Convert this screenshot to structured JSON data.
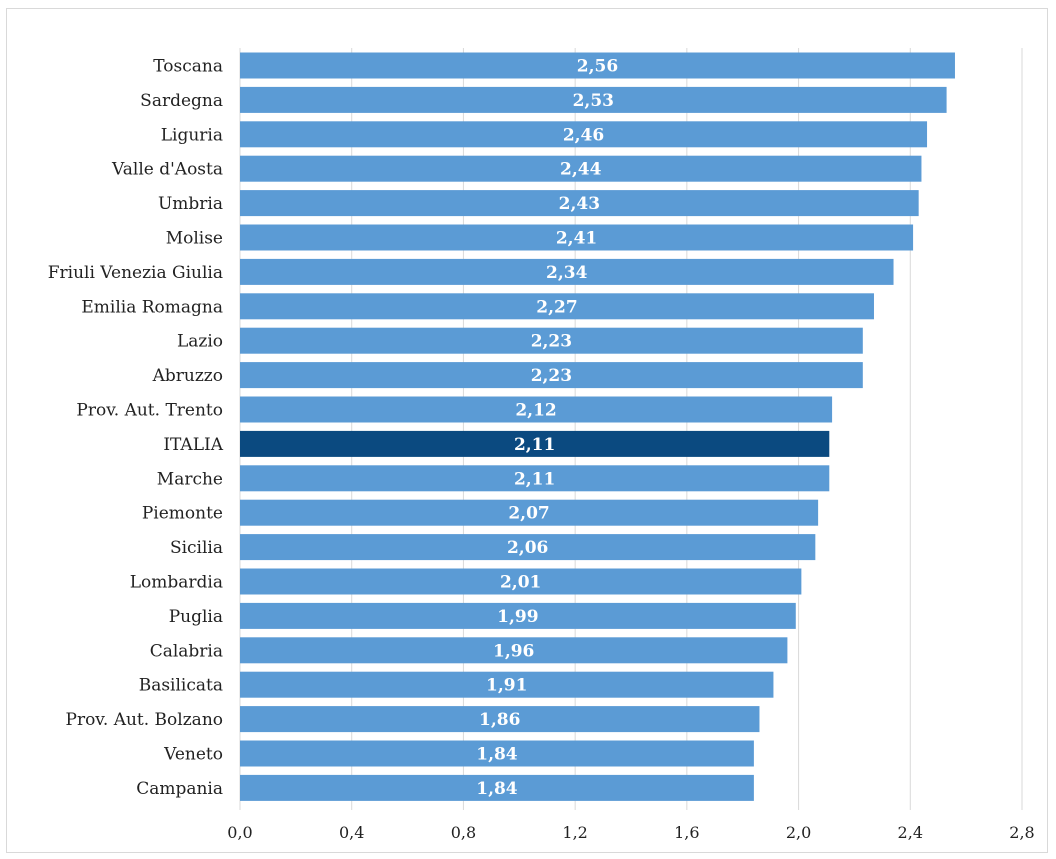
{
  "chart_data": {
    "type": "bar",
    "orientation": "horizontal",
    "categories": [
      "Toscana",
      "Sardegna",
      "Liguria",
      "Valle d'Aosta",
      "Umbria",
      "Molise",
      "Friuli Venezia Giulia",
      "Emilia Romagna",
      "Lazio",
      "Abruzzo",
      "Prov. Aut. Trento",
      "ITALIA",
      "Marche",
      "Piemonte",
      "Sicilia",
      "Lombardia",
      "Puglia",
      "Calabria",
      "Basilicata",
      "Prov. Aut. Bolzano",
      "Veneto",
      "Campania"
    ],
    "values": [
      2.56,
      2.53,
      2.46,
      2.44,
      2.43,
      2.41,
      2.34,
      2.27,
      2.23,
      2.23,
      2.12,
      2.11,
      2.11,
      2.07,
      2.06,
      2.01,
      1.99,
      1.96,
      1.91,
      1.86,
      1.84,
      1.84
    ],
    "value_labels": [
      "2,56",
      "2,53",
      "2,46",
      "2,44",
      "2,43",
      "2,41",
      "2,34",
      "2,27",
      "2,23",
      "2,23",
      "2,12",
      "2,11",
      "2,11",
      "2,07",
      "2,06",
      "2,01",
      "1,99",
      "1,96",
      "1,91",
      "1,86",
      "1,84",
      "1,84"
    ],
    "highlight": "ITALIA",
    "xlim": [
      0,
      2.8
    ],
    "xticks": [
      0,
      0.4,
      0.8,
      1.2,
      1.6,
      2.0,
      2.4,
      2.8
    ],
    "xtick_labels": [
      "0,0",
      "0,4",
      "0,8",
      "1,2",
      "1,6",
      "2,0",
      "2,4",
      "2,8"
    ],
    "grid": "vertical",
    "legend": "none",
    "colors": {
      "bar": "#5b9bd5",
      "highlight": "#0b4a80",
      "grid": "#d9d9d9"
    }
  }
}
